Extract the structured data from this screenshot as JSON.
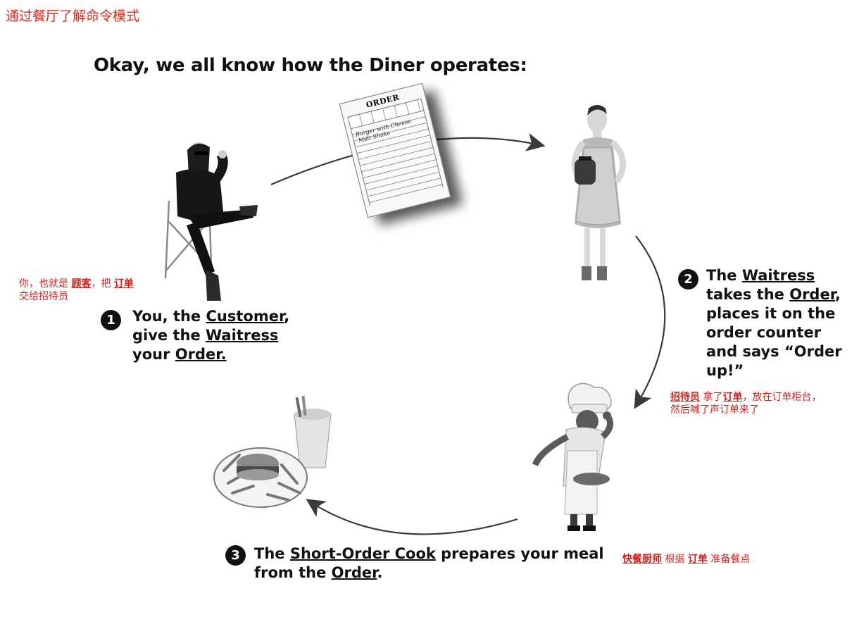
{
  "page_title": "通过餐厅了解命令模式",
  "heading": "Okay, we all know how the Diner operates:",
  "steps": [
    {
      "number": "1",
      "parts": [
        "You, the ",
        "Customer",
        ",",
        "give the ",
        "Waitress",
        "your ",
        "Order."
      ]
    },
    {
      "number": "2",
      "parts": [
        "The ",
        "Waitress",
        "takes the ",
        "Order",
        ",",
        "places it on the",
        "order counter",
        "and says “Order",
        "up!”"
      ]
    },
    {
      "number": "3",
      "parts": [
        "The ",
        "Short-Order Cook",
        " prepares your meal",
        "from the ",
        "Order",
        "."
      ]
    }
  ],
  "notes": {
    "customer": [
      "你，也就是 ",
      "顾客",
      "，把 ",
      "订单",
      "交给招待员"
    ],
    "waitress": [
      "招待员",
      " 拿了",
      "订单",
      "，放在订单柜台，",
      "然后喊了声订单来了"
    ],
    "cook": [
      "快餐厨师",
      " 根据 ",
      "订单",
      " 准备餐点"
    ]
  },
  "order_slip": {
    "title": "ORDER",
    "items": [
      "Burger with Cheese",
      "Malt Shake"
    ]
  },
  "figures": {
    "customer": "customer-photo",
    "waitress": "waitress-photo",
    "cook": "cook-photo",
    "meal": "meal-photo"
  },
  "colors": {
    "annotation": "#d0201a",
    "text": "#111111"
  }
}
